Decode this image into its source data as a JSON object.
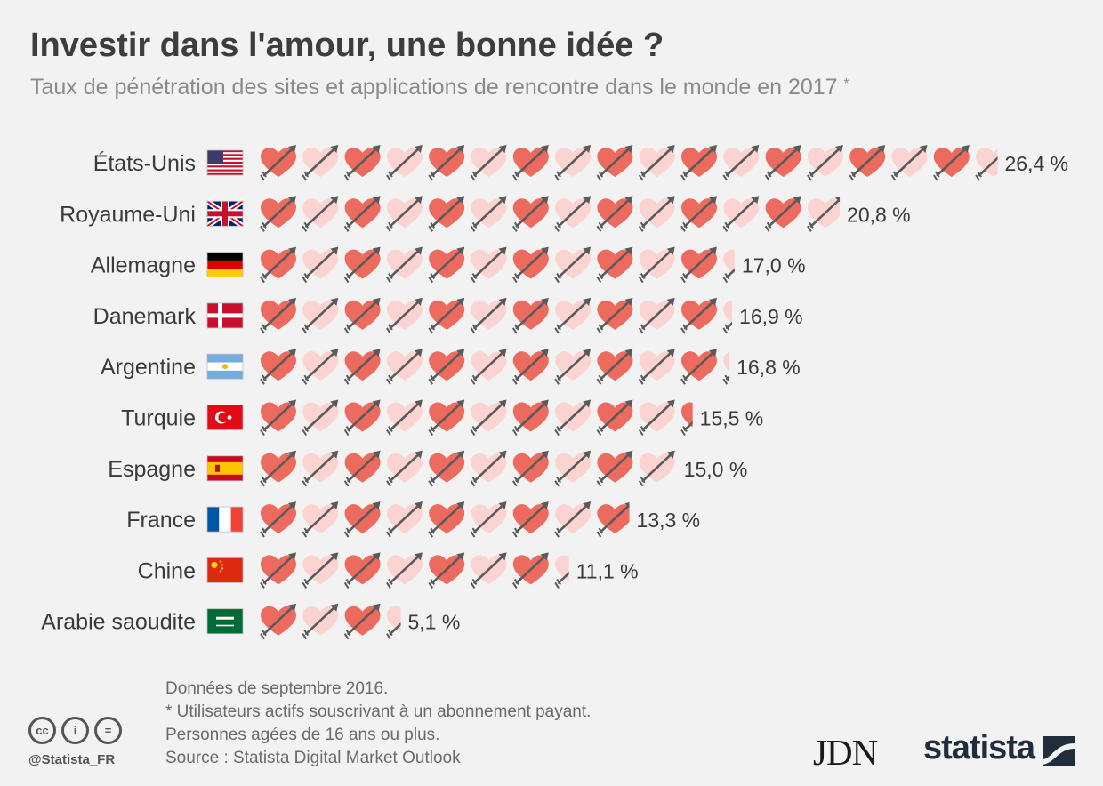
{
  "header": {
    "title": "Investir dans l'amour, une bonne idée ?",
    "subtitle": "Taux de pénétration des sites et applications de rencontre dans le monde en 2017",
    "subtitle_mark": "*"
  },
  "chart_data": {
    "type": "bar",
    "title": "Investir dans l'amour, une bonne idée ?",
    "subtitle": "Taux de pénétration des sites et applications de rencontre dans le monde en 2017 *",
    "unit": "%",
    "units_per_icon": 1.5,
    "categories": [
      "États-Unis",
      "Royaume-Uni",
      "Allemagne",
      "Danemark",
      "Argentine",
      "Turquie",
      "Espagne",
      "France",
      "Chine",
      "Arabie saoudite"
    ],
    "values": [
      26.4,
      20.8,
      17.0,
      16.9,
      16.8,
      15.5,
      15.0,
      13.3,
      11.1,
      5.1
    ],
    "value_labels": [
      "26,4 %",
      "20,8 %",
      "17,0 %",
      "16,9 %",
      "16,8 %",
      "15,5 %",
      "15,0 %",
      "13,3 %",
      "11,1 %",
      "5,1 %"
    ],
    "flags": [
      "us",
      "gb",
      "de",
      "dk",
      "ar",
      "tr",
      "es",
      "fr",
      "cn",
      "sa"
    ]
  },
  "colors": {
    "heart_dark": "#ec6a5e",
    "heart_light": "#fbd3d0",
    "arrow": "#5a5a5a",
    "background": "#f2f2f2"
  },
  "footer": {
    "note1": "Données de septembre 2016.",
    "note2": "* Utilisateurs actifs souscrivant à un abonnement payant.",
    "note3": "Personnes agées de 16 ans ou plus.",
    "source": "Source : Statista Digital Market Outlook",
    "handle": "@Statista_FR",
    "brand_jdn": "JDN",
    "brand_statista": "statista",
    "cc_icons": [
      "cc",
      "by",
      "nd"
    ],
    "cc_labels": [
      "cc",
      "i",
      "="
    ]
  }
}
